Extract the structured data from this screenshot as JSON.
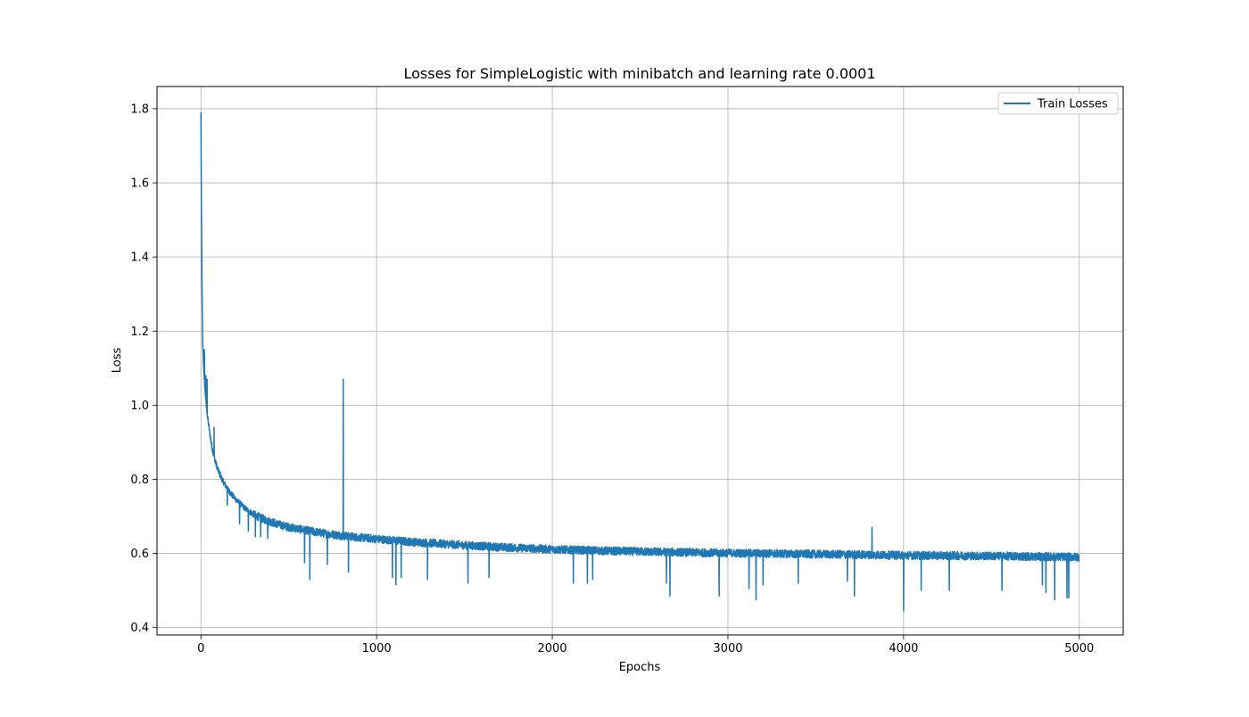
{
  "chart_data": {
    "type": "line",
    "title": "Losses for SimpleLogistic with minibatch and learning rate 0.0001",
    "xlabel": "Epochs",
    "ylabel": "Loss",
    "xlim": [
      -250,
      5250
    ],
    "ylim": [
      0.38,
      1.86
    ],
    "xticks": [
      0,
      1000,
      2000,
      3000,
      4000,
      5000
    ],
    "xtick_labels": [
      "0",
      "1000",
      "2000",
      "3000",
      "4000",
      "5000"
    ],
    "yticks": [
      0.4,
      0.6,
      0.8,
      1.0,
      1.2,
      1.4,
      1.6,
      1.8
    ],
    "ytick_labels": [
      "0.4",
      "0.6",
      "0.8",
      "1.0",
      "1.2",
      "1.4",
      "1.6",
      "1.8"
    ],
    "grid": true,
    "legend_position": "upper right",
    "series": [
      {
        "name": "Train Losses",
        "color": "#1f77b4",
        "x": [
          0,
          3,
          6,
          10,
          15,
          20,
          25,
          30,
          40,
          50,
          60,
          70,
          80,
          90,
          100,
          120,
          140,
          160,
          180,
          200,
          250,
          300,
          350,
          400,
          450,
          500,
          600,
          700,
          800,
          900,
          1000,
          1100,
          1200,
          1300,
          1400,
          1500,
          1700,
          2000,
          2300,
          2600,
          3000,
          3500,
          4000,
          4500,
          5000
        ],
        "values": [
          1.79,
          1.52,
          1.32,
          1.17,
          1.11,
          1.06,
          1.03,
          1.0,
          0.96,
          0.925,
          0.895,
          0.87,
          0.852,
          0.836,
          0.822,
          0.8,
          0.783,
          0.768,
          0.756,
          0.745,
          0.722,
          0.705,
          0.694,
          0.685,
          0.677,
          0.671,
          0.662,
          0.654,
          0.648,
          0.643,
          0.639,
          0.635,
          0.631,
          0.628,
          0.625,
          0.622,
          0.617,
          0.611,
          0.607,
          0.604,
          0.601,
          0.598,
          0.595,
          0.593,
          0.59
        ],
        "noise": 0.011,
        "spikes": [
          {
            "x": 10,
            "y": 1.16
          },
          {
            "x": 20,
            "y": 1.15
          },
          {
            "x": 28,
            "y": 1.08
          },
          {
            "x": 35,
            "y": 1.07
          },
          {
            "x": 75,
            "y": 0.94
          },
          {
            "x": 110,
            "y": 0.82
          },
          {
            "x": 150,
            "y": 0.73
          },
          {
            "x": 220,
            "y": 0.68
          },
          {
            "x": 270,
            "y": 0.66
          },
          {
            "x": 310,
            "y": 0.645
          },
          {
            "x": 340,
            "y": 0.645
          },
          {
            "x": 380,
            "y": 0.64
          },
          {
            "x": 590,
            "y": 0.575
          },
          {
            "x": 620,
            "y": 0.53
          },
          {
            "x": 720,
            "y": 0.57
          },
          {
            "x": 810,
            "y": 1.07
          },
          {
            "x": 840,
            "y": 0.55
          },
          {
            "x": 1090,
            "y": 0.535
          },
          {
            "x": 1110,
            "y": 0.515
          },
          {
            "x": 1140,
            "y": 0.535
          },
          {
            "x": 1290,
            "y": 0.53
          },
          {
            "x": 1520,
            "y": 0.52
          },
          {
            "x": 1640,
            "y": 0.535
          },
          {
            "x": 2120,
            "y": 0.52
          },
          {
            "x": 2200,
            "y": 0.52
          },
          {
            "x": 2230,
            "y": 0.53
          },
          {
            "x": 2650,
            "y": 0.52
          },
          {
            "x": 2670,
            "y": 0.485
          },
          {
            "x": 2950,
            "y": 0.485
          },
          {
            "x": 3120,
            "y": 0.505
          },
          {
            "x": 3160,
            "y": 0.475
          },
          {
            "x": 3200,
            "y": 0.515
          },
          {
            "x": 3400,
            "y": 0.52
          },
          {
            "x": 3680,
            "y": 0.525
          },
          {
            "x": 3720,
            "y": 0.485
          },
          {
            "x": 3820,
            "y": 0.67
          },
          {
            "x": 4000,
            "y": 0.445
          },
          {
            "x": 4100,
            "y": 0.5
          },
          {
            "x": 4260,
            "y": 0.5
          },
          {
            "x": 4560,
            "y": 0.5
          },
          {
            "x": 4790,
            "y": 0.515
          },
          {
            "x": 4810,
            "y": 0.495
          },
          {
            "x": 4860,
            "y": 0.475
          },
          {
            "x": 4930,
            "y": 0.48
          },
          {
            "x": 4940,
            "y": 0.48
          }
        ]
      }
    ]
  }
}
